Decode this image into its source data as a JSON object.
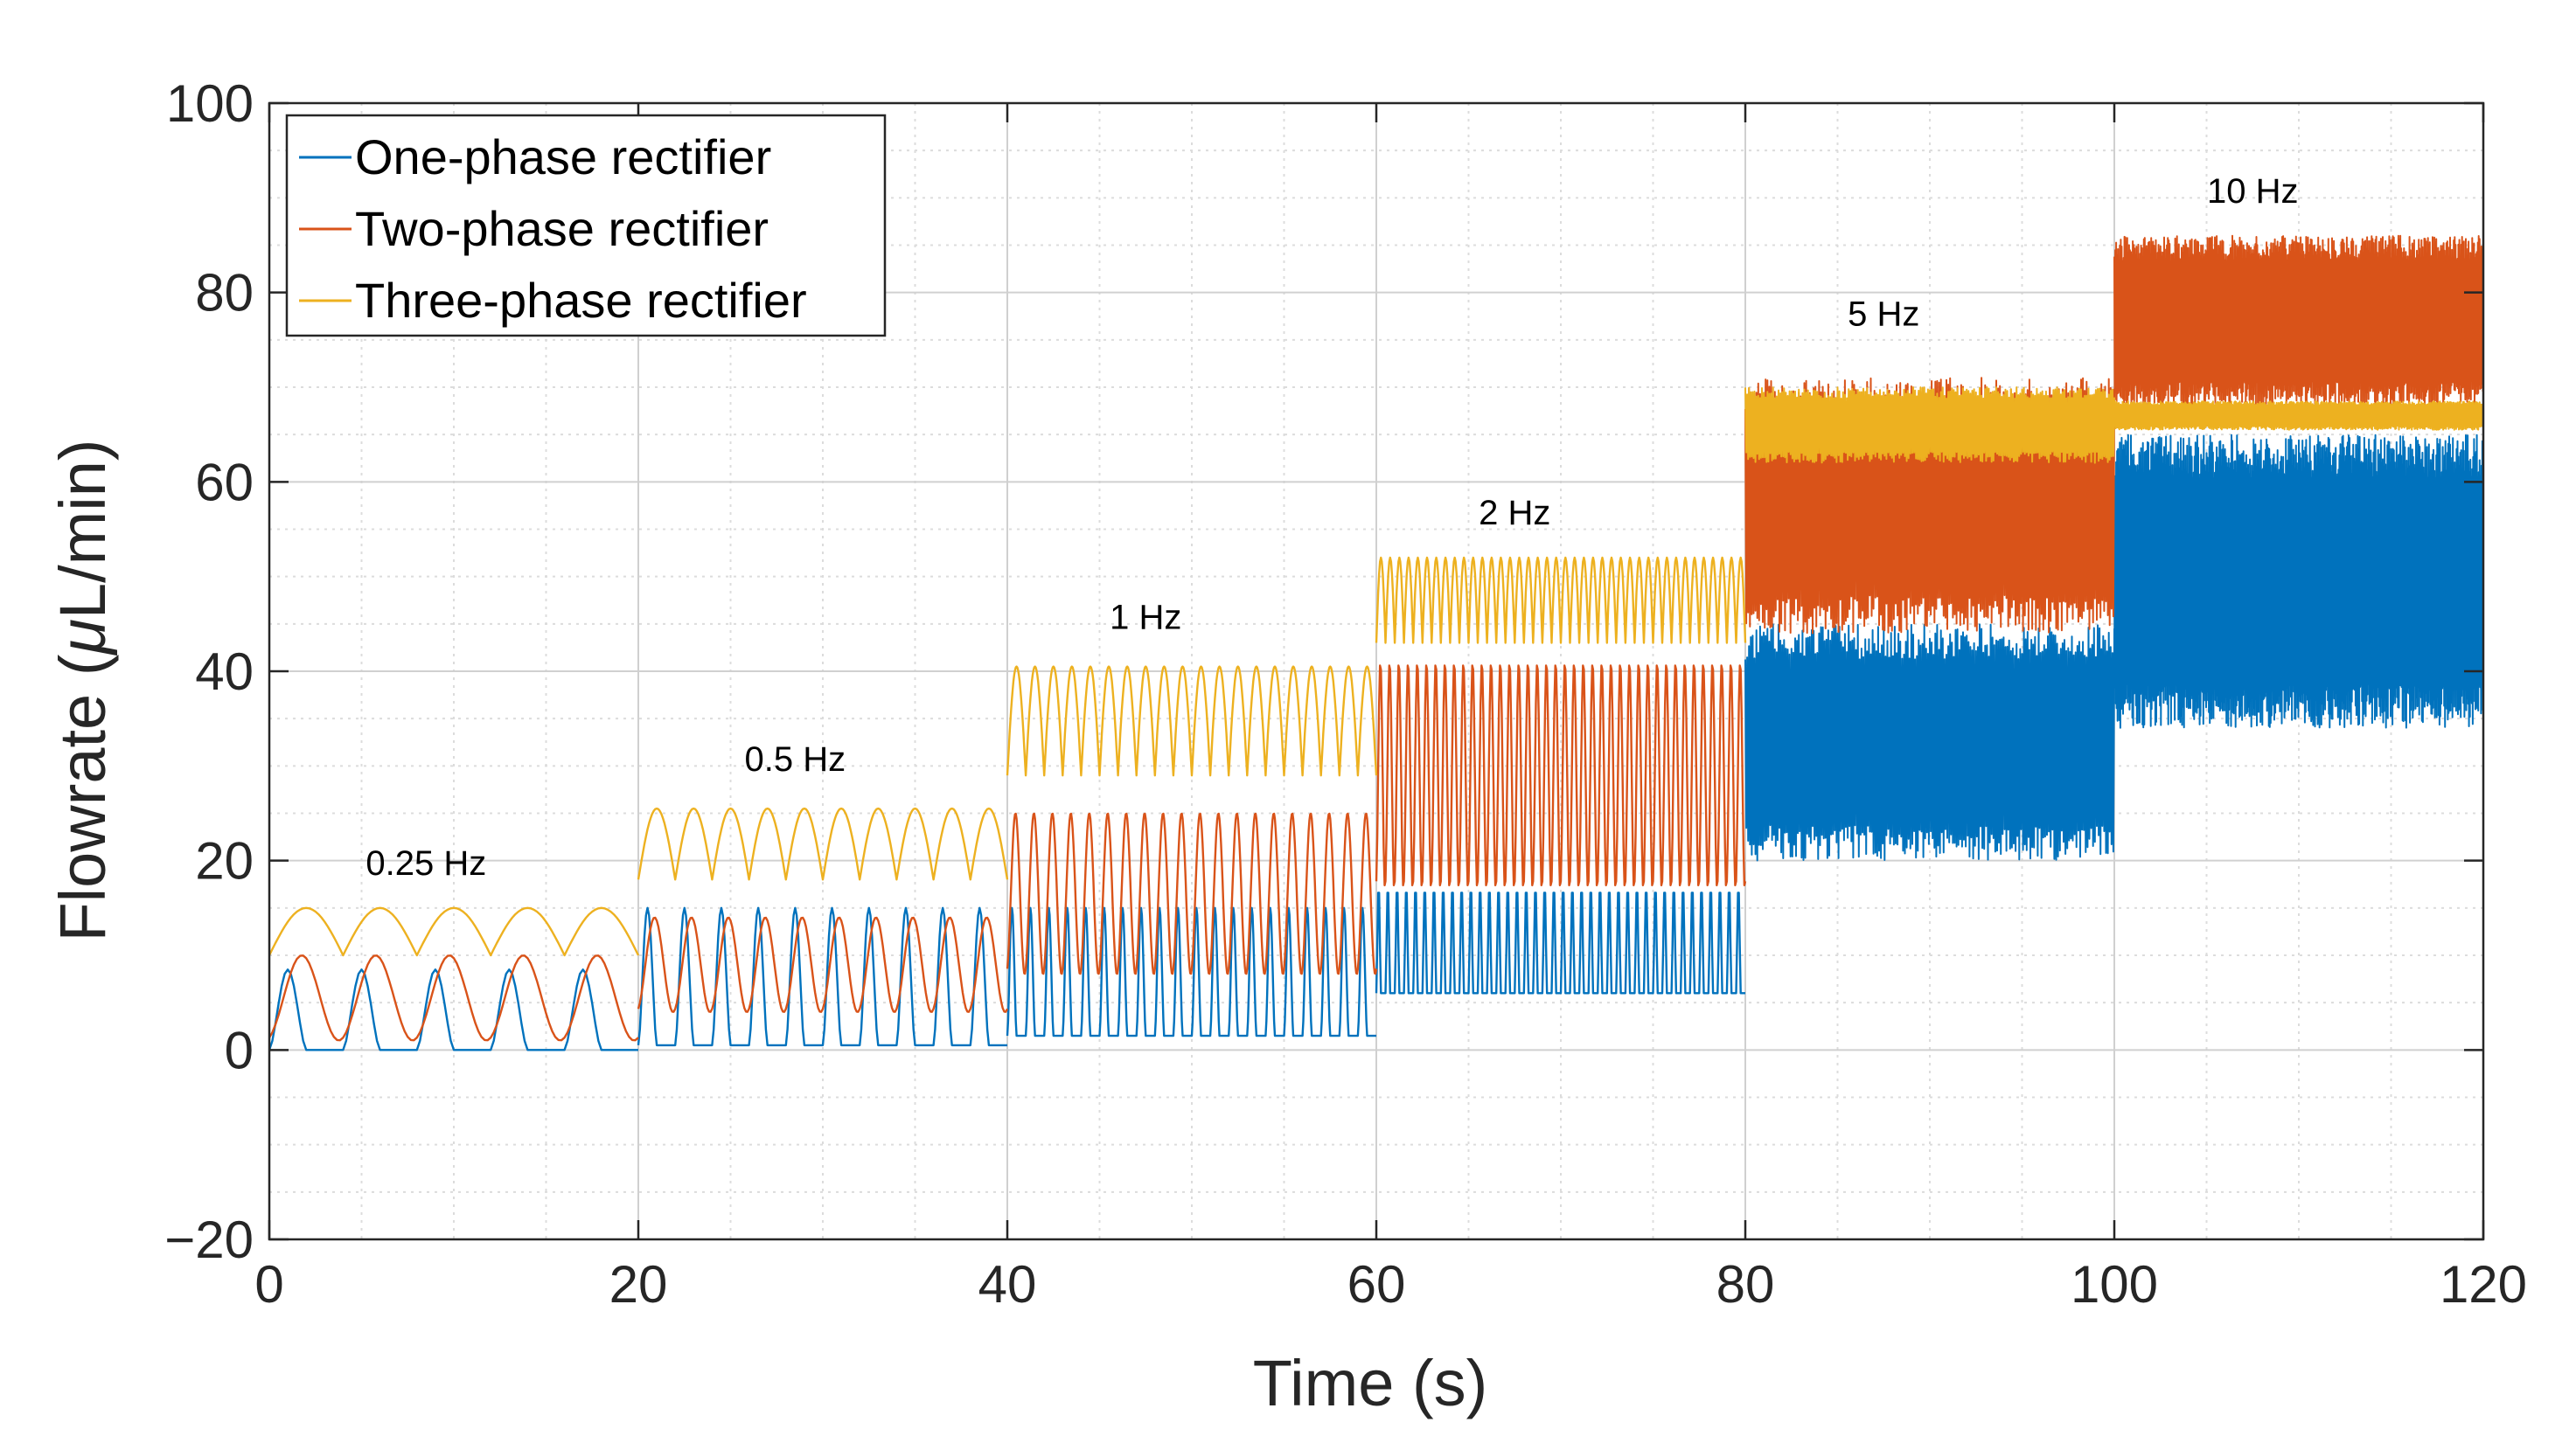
{
  "chart_data": {
    "type": "line",
    "title": "",
    "xlabel": "Time (s)",
    "ylabel_prefix": "Flowrate (",
    "ylabel_mu": "μ",
    "ylabel_suffix": "L/min)",
    "xlim": [
      0,
      120
    ],
    "ylim": [
      -20,
      100
    ],
    "xticks": [
      0,
      20,
      40,
      60,
      80,
      100,
      120
    ],
    "yticks": [
      -20,
      0,
      20,
      40,
      60,
      80,
      100
    ],
    "xtick_labels": [
      "0",
      "20",
      "40",
      "60",
      "80",
      "100",
      "120"
    ],
    "ytick_labels": [
      "−20",
      "0",
      "20",
      "40",
      "60",
      "80",
      "100"
    ],
    "grid": true,
    "minor_grid": true,
    "legend_position": "top-left",
    "segments": [
      {
        "label": "0.25 Hz",
        "t_start": 0,
        "t_end": 20,
        "freq": 0.25,
        "label_x": 8.5,
        "label_y": 18.5
      },
      {
        "label": "0.5 Hz",
        "t_start": 20,
        "t_end": 40,
        "freq": 0.5,
        "label_x": 28.5,
        "label_y": 29.5
      },
      {
        "label": "1 Hz",
        "t_start": 40,
        "t_end": 60,
        "freq": 1,
        "label_x": 47.5,
        "label_y": 44.5
      },
      {
        "label": "2 Hz",
        "t_start": 60,
        "t_end": 80,
        "freq": 2,
        "label_x": 67.5,
        "label_y": 55.5
      },
      {
        "label": "5 Hz",
        "t_start": 80,
        "t_end": 100,
        "freq": 5,
        "label_x": 87.5,
        "label_y": 76.5
      },
      {
        "label": "10 Hz",
        "t_start": 100,
        "t_end": 120,
        "freq": 10,
        "label_x": 107.5,
        "label_y": 89.5
      }
    ],
    "series": [
      {
        "name": "One-phase rectifier",
        "color": "#0072BD",
        "ranges": [
          [
            0,
            8.5
          ],
          [
            0.5,
            15
          ],
          [
            1.5,
            15
          ],
          [
            6,
            17.5
          ],
          [
            20,
            45
          ],
          [
            34,
            65
          ]
        ]
      },
      {
        "name": "Two-phase rectifier",
        "color": "#D95319",
        "ranges": [
          [
            1,
            10
          ],
          [
            4,
            14
          ],
          [
            8,
            25
          ],
          [
            17,
            41
          ],
          [
            44,
            71
          ],
          [
            68,
            86
          ]
        ]
      },
      {
        "name": "Three-phase rectifier",
        "color": "#EDB120",
        "ranges": [
          [
            10,
            15
          ],
          [
            18,
            25.5
          ],
          [
            29,
            40.5
          ],
          [
            43,
            52
          ],
          [
            62,
            70
          ],
          [
            65.5,
            68.5
          ]
        ]
      }
    ]
  }
}
